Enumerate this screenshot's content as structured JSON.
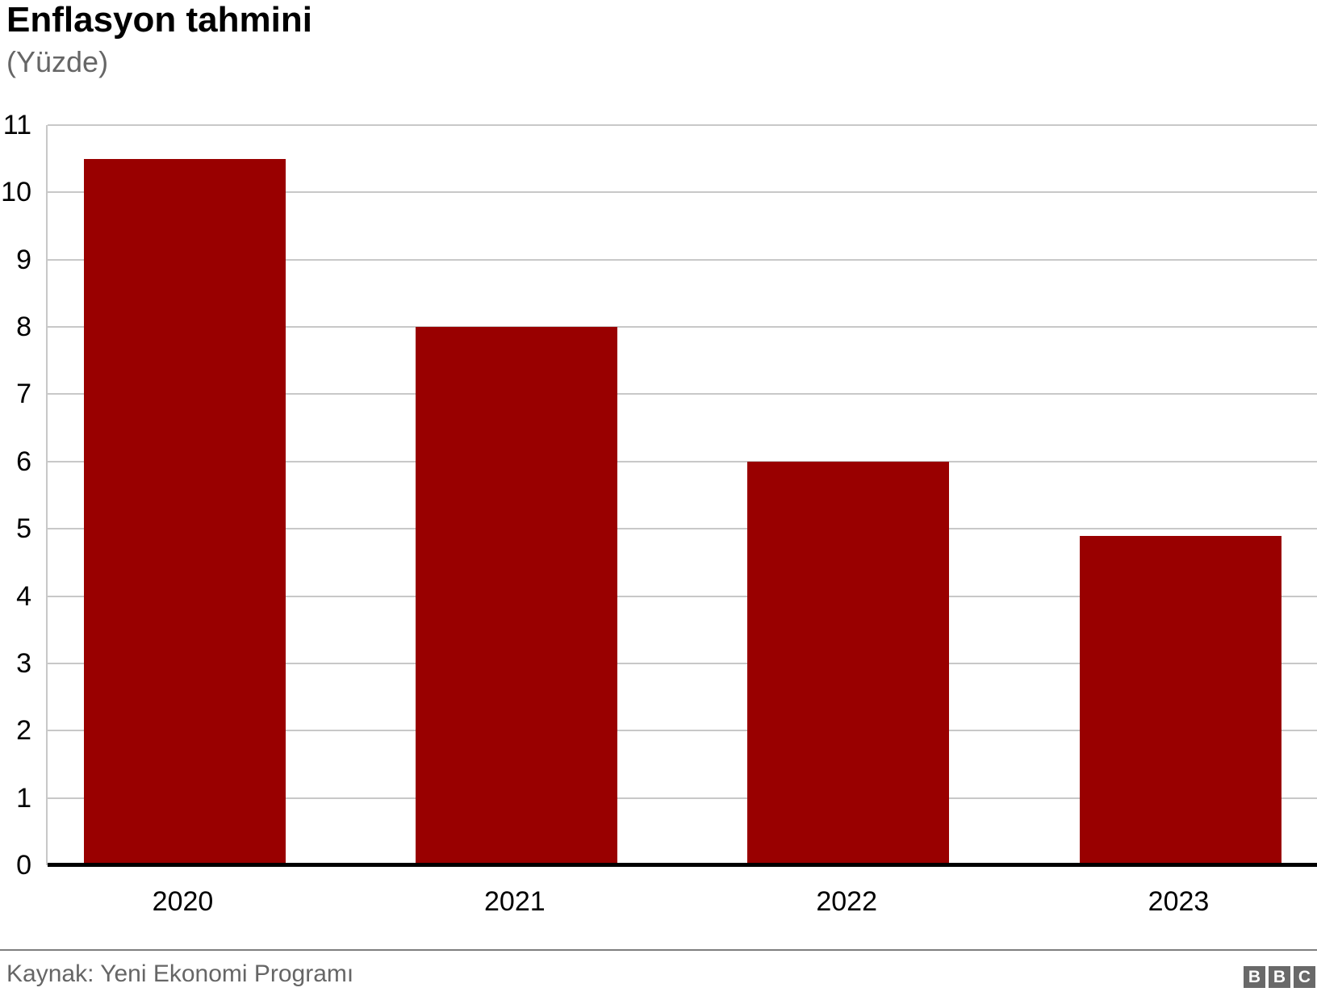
{
  "header": {
    "title": "Enflasyon tahmini",
    "subtitle": "(Yüzde)"
  },
  "footer": {
    "source": "Kaynak: Yeni Ekonomi Programı"
  },
  "logo": {
    "letters": [
      "B",
      "B",
      "C"
    ]
  },
  "colors": {
    "bar": "#990000",
    "grid": "#c8c8c8",
    "axis": "#000000",
    "muted": "#666666",
    "logo_bg": "#696969"
  },
  "chart_data": {
    "type": "bar",
    "categories": [
      "2020",
      "2021",
      "2022",
      "2023"
    ],
    "values": [
      10.5,
      8.0,
      6.0,
      4.9
    ],
    "title": "Enflasyon tahmini",
    "subtitle": "(Yüzde)",
    "xlabel": "",
    "ylabel": "",
    "ylim": [
      0,
      11
    ],
    "ytick_step": 1,
    "grid": "horizontal",
    "legend": "none",
    "bar_color": "#990000"
  }
}
